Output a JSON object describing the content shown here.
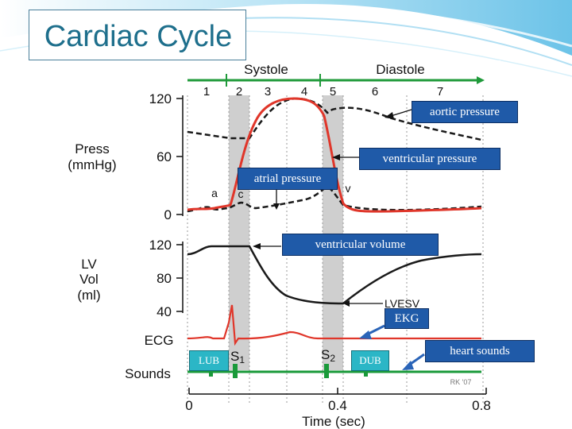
{
  "slide": {
    "title": "Cardiac Cycle",
    "colors": {
      "title": "#1e6f8c",
      "callout_fill": "#1f5aa8",
      "teal_fill": "#2bb6c6",
      "wave_top": "#8fd4ef"
    }
  },
  "figure": {
    "phase_bar": {
      "systole": "Systole",
      "diastole": "Diastole",
      "numbers": [
        "1",
        "2",
        "3",
        "4",
        "5",
        "6",
        "7"
      ],
      "color": "#1f9a3a"
    },
    "pressure_axis": {
      "label": [
        "Press",
        "(mmHg)"
      ],
      "ticks": [
        "120",
        "60",
        "0"
      ]
    },
    "volume_axis": {
      "label": [
        "LV",
        "Vol",
        "(ml)"
      ],
      "ticks": [
        "120",
        "80",
        "40"
      ]
    },
    "row_labels": {
      "ecg": "ECG",
      "sounds": "Sounds"
    },
    "time_axis": {
      "label": "Time (sec)",
      "ticks": [
        "0",
        "0.4",
        "0.8"
      ]
    },
    "wave_labels": {
      "a": "a",
      "c": "c",
      "v": "v"
    },
    "heart_sounds": {
      "s1": "S",
      "s1_sub": "1",
      "s2": "S",
      "s2_sub": "2"
    },
    "lvesv_label": "LVESV",
    "credit": "RK '07",
    "colors": {
      "ventricular": "#e0362a",
      "aortic": "#1a1a1a",
      "shade": "#cfcfcf",
      "sounds": "#1a9a3a"
    }
  },
  "callouts": {
    "aortic_pressure": "aortic pressure",
    "ventricular_pressure": "ventricular pressure",
    "atrial_pressure": "atrial pressure",
    "ventricular_volume": "ventricular volume",
    "ekg": "EKG",
    "heart_sounds": "heart sounds",
    "lub": "LUB",
    "dub": "DUB"
  }
}
